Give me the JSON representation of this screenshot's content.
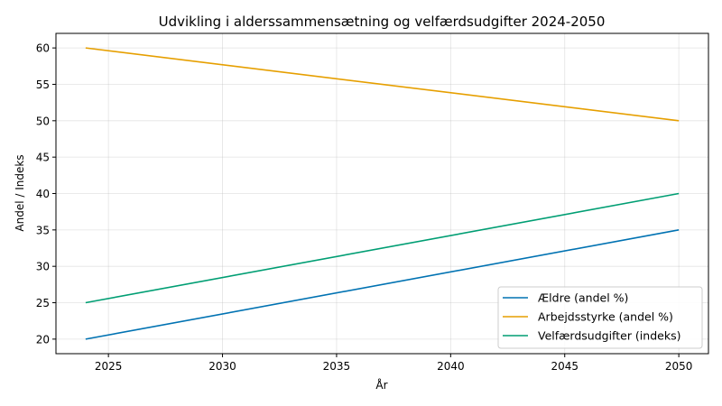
{
  "chart_data": {
    "type": "line",
    "title": "Udvikling i alderssammensætning og velfærdsudgifter 2024-2050",
    "xlabel": "År",
    "ylabel": "Andel / Indeks",
    "x": [
      2024,
      2050
    ],
    "xlim": [
      2022.7,
      2051.3
    ],
    "ylim": [
      18.0,
      62.0
    ],
    "xticks": [
      2025,
      2030,
      2035,
      2040,
      2045,
      2050
    ],
    "yticks": [
      20,
      25,
      30,
      35,
      40,
      45,
      50,
      55,
      60
    ],
    "grid": true,
    "legend_position": "lower-right",
    "series": [
      {
        "name": "Ældre (andel %)",
        "color": "#0072b2",
        "values": [
          20,
          35
        ]
      },
      {
        "name": "Arbejdsstyrke (andel %)",
        "color": "#e69f00",
        "values": [
          60,
          50
        ]
      },
      {
        "name": "Velfærdsudgifter (indeks)",
        "color": "#009e73",
        "values": [
          25,
          40
        ]
      }
    ]
  }
}
